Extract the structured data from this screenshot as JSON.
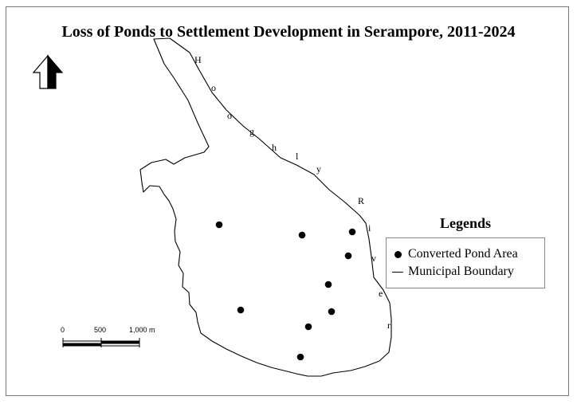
{
  "title": "Loss of Ponds to Settlement Development in Serampore, 2011-2024",
  "river_label": [
    "H",
    "o",
    "o",
    "g",
    "h",
    "l",
    "y",
    "R",
    "i",
    "v",
    "e",
    "r"
  ],
  "legend": {
    "title": "Legends",
    "items": [
      {
        "label": "Converted Pond Area",
        "symbol": "dot"
      },
      {
        "label": "Municipal Boundary",
        "symbol": "line"
      }
    ]
  },
  "scale_bar": {
    "labels": [
      "0",
      "500",
      "1,000 m"
    ]
  },
  "north_arrow": {
    "icon": "north-arrow-icon"
  },
  "converted_pond_count": 9
}
